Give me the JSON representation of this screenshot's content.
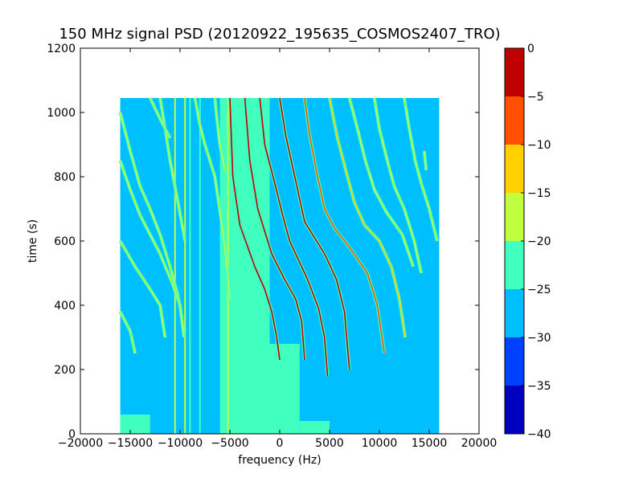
{
  "chart_data": {
    "type": "heatmap",
    "title": "150 MHz signal PSD (20120922_195635_COSMOS2407_TRO)",
    "xlabel": "frequency (Hz)",
    "ylabel": "time (s)",
    "xlim": [
      -20000,
      20000
    ],
    "ylim": [
      0,
      1200
    ],
    "x_ticks": [
      -20000,
      -15000,
      -10000,
      -5000,
      0,
      5000,
      10000,
      15000,
      20000
    ],
    "y_ticks": [
      0,
      200,
      400,
      600,
      800,
      1000,
      1200
    ],
    "data_extent": {
      "x": [
        -16000,
        16000
      ],
      "y": [
        0,
        1045
      ]
    },
    "colorbar": {
      "range": [
        -40,
        0
      ],
      "ticks": [
        0,
        -5,
        -10,
        -15,
        -20,
        -25,
        -30,
        -35,
        -40
      ],
      "levels": [
        {
          "from": -40,
          "to": -35,
          "color": "#0000bf"
        },
        {
          "from": -35,
          "to": -30,
          "color": "#0040ff"
        },
        {
          "from": -30,
          "to": -25,
          "color": "#00bfff"
        },
        {
          "from": -25,
          "to": -20,
          "color": "#40ffbf"
        },
        {
          "from": -20,
          "to": -15,
          "color": "#bfff40"
        },
        {
          "from": -15,
          "to": -10,
          "color": "#ffcf00"
        },
        {
          "from": -10,
          "to": -5,
          "color": "#ff5000"
        },
        {
          "from": -5,
          "to": 0,
          "color": "#bf0000"
        }
      ]
    },
    "background_level": -27.5,
    "regions": [
      {
        "x": [
          -6000,
          -1000
        ],
        "y": [
          0,
          1045
        ],
        "level": -22.5
      },
      {
        "x": [
          -2000,
          2000
        ],
        "y": [
          0,
          280
        ],
        "level": -22.5
      },
      {
        "x": [
          -16000,
          -13000
        ],
        "y": [
          0,
          60
        ],
        "level": -22.5
      },
      {
        "x": [
          2000,
          5000
        ],
        "y": [
          0,
          40
        ],
        "level": -22.5
      }
    ],
    "vertical_lines": [
      {
        "x": -10500,
        "level": -17.5
      },
      {
        "x": -9500,
        "level": -17.5
      },
      {
        "x": -9000,
        "level": -22.5
      },
      {
        "x": -8000,
        "level": -22.5
      },
      {
        "x": -5200,
        "level": -17.5
      },
      {
        "x": -4800,
        "level": -22.5
      }
    ],
    "traces": [
      {
        "level": -2.5,
        "points": [
          [
            -5000,
            1045
          ],
          [
            -4700,
            800
          ],
          [
            -4000,
            650
          ],
          [
            -2500,
            520
          ],
          [
            -1500,
            450
          ],
          [
            -800,
            380
          ],
          [
            -300,
            300
          ],
          [
            0,
            230
          ]
        ]
      },
      {
        "level": -2.5,
        "points": [
          [
            -3500,
            1045
          ],
          [
            -3000,
            850
          ],
          [
            -2200,
            700
          ],
          [
            -800,
            560
          ],
          [
            500,
            480
          ],
          [
            1600,
            420
          ],
          [
            2200,
            350
          ],
          [
            2500,
            230
          ]
        ]
      },
      {
        "level": -2.5,
        "points": [
          [
            -2000,
            1045
          ],
          [
            -1500,
            900
          ],
          [
            -500,
            780
          ],
          [
            300,
            680
          ],
          [
            1000,
            600
          ],
          [
            2800,
            480
          ],
          [
            3900,
            390
          ],
          [
            4500,
            300
          ],
          [
            4800,
            180
          ]
        ]
      },
      {
        "level": -2.5,
        "points": [
          [
            0,
            1045
          ],
          [
            600,
            930
          ],
          [
            1300,
            830
          ],
          [
            1800,
            760
          ],
          [
            2500,
            660
          ],
          [
            4500,
            560
          ],
          [
            5700,
            480
          ],
          [
            6500,
            380
          ],
          [
            7000,
            200
          ]
        ]
      },
      {
        "level": -7.5,
        "points": [
          [
            2500,
            1045
          ],
          [
            3000,
            930
          ],
          [
            3800,
            800
          ],
          [
            4500,
            700
          ],
          [
            5500,
            640
          ],
          [
            7000,
            580
          ],
          [
            8800,
            500
          ],
          [
            9800,
            400
          ],
          [
            10500,
            250
          ]
        ]
      },
      {
        "level": -12.5,
        "points": [
          [
            5000,
            1045
          ],
          [
            5800,
            920
          ],
          [
            6800,
            800
          ],
          [
            7500,
            720
          ],
          [
            8500,
            650
          ],
          [
            10000,
            600
          ],
          [
            11200,
            520
          ],
          [
            12000,
            420
          ],
          [
            12600,
            300
          ]
        ]
      },
      {
        "level": -17.5,
        "points": [
          [
            7000,
            1045
          ],
          [
            7800,
            950
          ],
          [
            8600,
            850
          ],
          [
            9500,
            760
          ],
          [
            10700,
            690
          ],
          [
            12300,
            620
          ],
          [
            13400,
            520
          ]
        ]
      },
      {
        "level": -17.5,
        "points": [
          [
            9500,
            1045
          ],
          [
            10000,
            950
          ],
          [
            10800,
            850
          ],
          [
            11500,
            770
          ],
          [
            12500,
            700
          ],
          [
            13500,
            600
          ],
          [
            14200,
            500
          ]
        ]
      },
      {
        "level": -17.5,
        "points": [
          [
            12500,
            1045
          ],
          [
            13000,
            950
          ],
          [
            13600,
            850
          ],
          [
            14200,
            780
          ],
          [
            15000,
            700
          ],
          [
            15800,
            600
          ]
        ]
      },
      {
        "level": -17.5,
        "points": [
          [
            -8500,
            1045
          ],
          [
            -8000,
            960
          ],
          [
            -7500,
            900
          ],
          [
            -7000,
            850
          ],
          [
            -6500,
            800
          ],
          [
            -5800,
            650
          ],
          [
            -5300,
            520
          ],
          [
            -5000,
            420
          ]
        ]
      },
      {
        "level": -17.5,
        "points": [
          [
            -16000,
            1000
          ],
          [
            -15000,
            880
          ],
          [
            -14000,
            770
          ],
          [
            -13000,
            700
          ],
          [
            -12000,
            620
          ],
          [
            -11000,
            520
          ],
          [
            -10200,
            430
          ],
          [
            -9800,
            360
          ]
        ]
      },
      {
        "level": -17.5,
        "points": [
          [
            -16000,
            850
          ],
          [
            -15000,
            760
          ],
          [
            -14000,
            680
          ],
          [
            -12000,
            560
          ],
          [
            -10800,
            470
          ],
          [
            -10000,
            400
          ],
          [
            -9600,
            300
          ]
        ]
      },
      {
        "level": -17.5,
        "points": [
          [
            -16000,
            600
          ],
          [
            -14500,
            520
          ],
          [
            -13000,
            450
          ],
          [
            -12000,
            400
          ],
          [
            -11500,
            300
          ]
        ]
      },
      {
        "level": -17.5,
        "points": [
          [
            -16000,
            380
          ],
          [
            -15000,
            320
          ],
          [
            -14500,
            250
          ]
        ]
      },
      {
        "level": -17.5,
        "points": [
          [
            -12000,
            1045
          ],
          [
            -11500,
            950
          ],
          [
            -11000,
            850
          ],
          [
            -10200,
            720
          ],
          [
            -9500,
            600
          ]
        ]
      },
      {
        "level": -17.5,
        "points": [
          [
            -13000,
            1045
          ],
          [
            -12000,
            980
          ],
          [
            -11000,
            920
          ]
        ]
      },
      {
        "level": -17.5,
        "points": [
          [
            -6500,
            1045
          ],
          [
            -6300,
            980
          ],
          [
            -6000,
            900
          ],
          [
            -5500,
            820
          ]
        ]
      },
      {
        "level": -17.5,
        "points": [
          [
            14500,
            880
          ],
          [
            14700,
            820
          ]
        ]
      }
    ]
  }
}
